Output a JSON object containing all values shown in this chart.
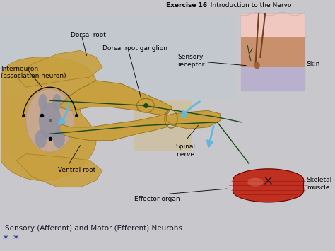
{
  "bg_color": "#c8c8cc",
  "title_bold": "Exercise 16",
  "title_rest": "  Introduction to the Nervo",
  "caption": "Sensory (Afferent) and Motor (Efferent) Neurons",
  "labels": {
    "interneuron": "Interneuron\n(association neuron)",
    "dorsal_root": "Dorsal root",
    "dorsal_root_ganglion": "Dorsal root ganglion",
    "sensory_receptor": "Sensory\nreceptor",
    "skin": "Skin",
    "spinal_nerve": "Spinal\nnerve",
    "ventral_root": "Ventral root",
    "effector_organ": "Effector organ",
    "skeletal_muscle": "Skeletal\nmuscle"
  },
  "spine_color": "#c8a040",
  "spine_gray": "#9090a0",
  "spine_pink": "#d4a898",
  "muscle_color_dark": "#8b1010",
  "muscle_color_mid": "#c03020",
  "muscle_color_light": "#e06050",
  "skin_pink": "#e8b8b0",
  "skin_tan": "#c8956c",
  "skin_lavender": "#c0b8d0",
  "arrow_color": "#60b8e0",
  "nerve_color": "#1a4a1a",
  "neuron_color": "#c8a040",
  "bg_rect_tan": "#d8b878",
  "bg_rect_blue": "#b0c0d0"
}
